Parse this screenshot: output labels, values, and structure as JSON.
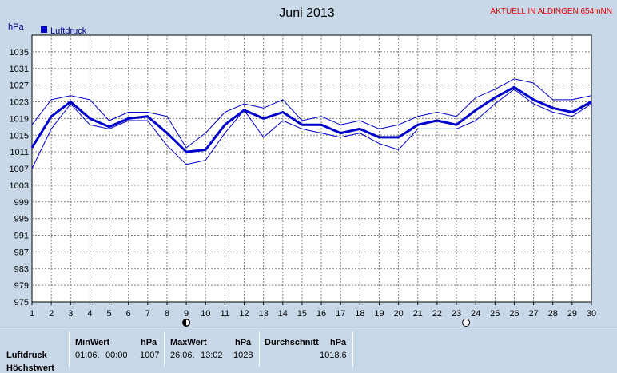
{
  "header": {
    "title": "Juni 2013",
    "banner": "AKTUELL IN ALDINGEN 654mNN",
    "unit": "hPa",
    "legend_label": "Luftdruck"
  },
  "colors": {
    "background": "#c8d8e8",
    "plot_background": "#ffffff",
    "line": "#0000cc",
    "grid": "#808080",
    "banner": "#e00000"
  },
  "chart_data": {
    "type": "line",
    "title": "Juni 2013",
    "ylabel": "hPa",
    "xlabel": "",
    "ylim": [
      975,
      1039
    ],
    "xlim": [
      1,
      30
    ],
    "yticks": [
      975,
      979,
      983,
      987,
      991,
      995,
      999,
      1003,
      1007,
      1011,
      1015,
      1019,
      1023,
      1027,
      1031,
      1035
    ],
    "x": [
      1,
      2,
      3,
      4,
      5,
      6,
      7,
      8,
      9,
      10,
      11,
      12,
      13,
      14,
      15,
      16,
      17,
      18,
      19,
      20,
      21,
      22,
      23,
      24,
      25,
      26,
      27,
      28,
      29,
      30
    ],
    "grid": true,
    "legend_position": "top-left",
    "series": [
      {
        "name": "Luftdruck",
        "role": "mean",
        "values": [
          1012,
          1019.5,
          1023,
          1019,
          1017,
          1019,
          1019.5,
          1015.5,
          1011,
          1011.5,
          1017.5,
          1021,
          1019,
          1020.5,
          1017.5,
          1017.5,
          1015.5,
          1016.5,
          1014.5,
          1014.5,
          1017.5,
          1018.5,
          1017.5,
          1021,
          1024,
          1026.5,
          1023.5,
          1021.5,
          1020.5,
          1023
        ]
      },
      {
        "role": "max",
        "values": [
          1017.5,
          1023.5,
          1024.5,
          1023.5,
          1018.5,
          1020.5,
          1020.5,
          1019.5,
          1012,
          1015.5,
          1020.5,
          1022.5,
          1021.5,
          1023.5,
          1018.5,
          1019.5,
          1017.5,
          1018.5,
          1016.5,
          1017.5,
          1019.5,
          1020.5,
          1019.5,
          1024,
          1026,
          1028.5,
          1027.5,
          1023.5,
          1023.5,
          1024.5
        ]
      },
      {
        "role": "min",
        "values": [
          1007,
          1016.5,
          1022.5,
          1017.5,
          1016.5,
          1018.5,
          1018.5,
          1012.5,
          1008,
          1009,
          1015.5,
          1021,
          1014.5,
          1018.5,
          1016.5,
          1015.5,
          1014.5,
          1015.5,
          1013,
          1011.5,
          1016.5,
          1016.5,
          1016.5,
          1018.5,
          1022.5,
          1026,
          1022.5,
          1020.5,
          1019.5,
          1022.5
        ]
      }
    ],
    "moon_markers": [
      {
        "x": 9,
        "phase": "new-moon"
      },
      {
        "x": 23.5,
        "phase": "full-moon"
      }
    ]
  },
  "stats": {
    "row_labels": [
      "Luftdruck",
      "Höchstwert"
    ],
    "min": {
      "header": "MinWert",
      "unit": "hPa",
      "date": "01.06.",
      "time": "00:00",
      "value": "1007"
    },
    "max": {
      "header": "MaxWert",
      "unit": "hPa",
      "date": "26.06.",
      "time": "13:02",
      "value": "1028"
    },
    "avg": {
      "header": "Durchschnitt",
      "unit": "hPa",
      "value": "1018.6"
    }
  }
}
